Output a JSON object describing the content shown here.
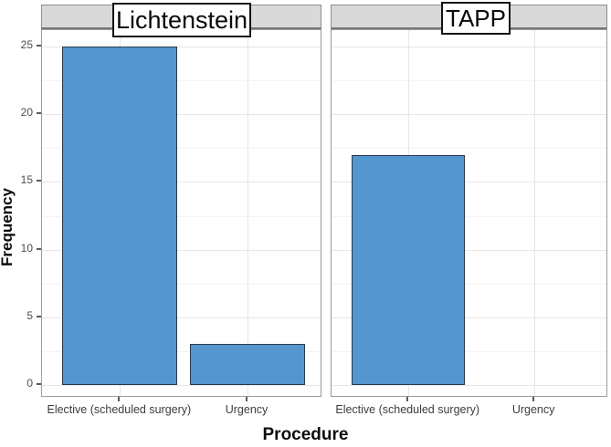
{
  "chart_data": {
    "type": "bar",
    "title": "",
    "facets": [
      "Lichtenstein",
      "TAPP"
    ],
    "categories": [
      "Elective (scheduled surgery)",
      "Urgency"
    ],
    "series": [
      {
        "name": "Lichtenstein",
        "values": [
          25,
          3
        ]
      },
      {
        "name": "TAPP",
        "values": [
          17,
          0
        ]
      }
    ],
    "xlabel": "Procedure",
    "ylabel": "Frequency",
    "ylim": [
      0,
      25
    ],
    "yticks": [
      0,
      5,
      10,
      15,
      20,
      25
    ],
    "y_minor_ticks": [
      2.5,
      7.5,
      12.5,
      17.5,
      22.5
    ],
    "grid": true,
    "legend": "none",
    "colors": {
      "bar_fill": "#5496d0",
      "bar_border": "#2b3a47",
      "strip_background": "#d9d9d9",
      "panel_border": "#9b9b9b",
      "grid_major": "#e6e6e6",
      "grid_minor": "#f3f3f3",
      "tick_label": "#4d4d4d",
      "axis_title": "#0d0d0d"
    }
  }
}
